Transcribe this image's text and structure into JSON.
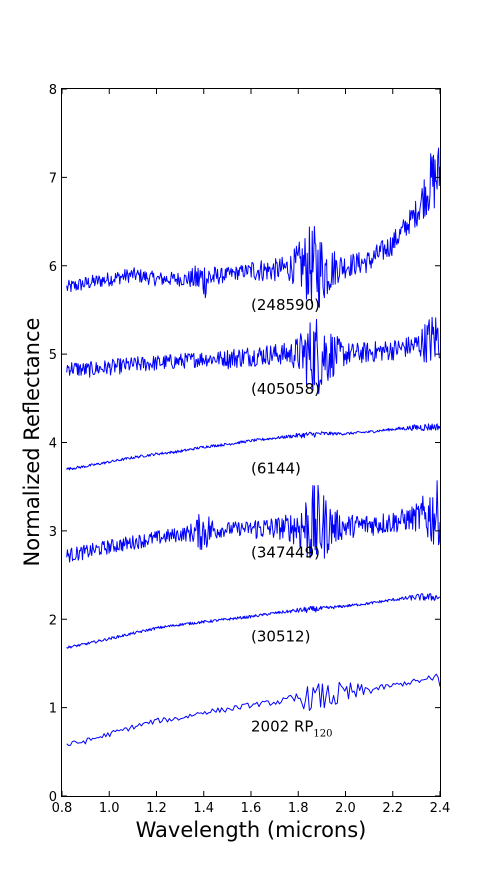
{
  "chart_data": {
    "type": "line",
    "title": "",
    "xlabel": "Wavelength (microns)",
    "ylabel": "Normalized Reflectance",
    "xlim": [
      0.8,
      2.4
    ],
    "ylim": [
      0,
      8
    ],
    "x_ticks": [
      "0.8",
      "1.0",
      "1.2",
      "1.4",
      "1.6",
      "1.8",
      "2.0",
      "2.2",
      "2.4"
    ],
    "y_ticks": [
      "0",
      "1",
      "2",
      "3",
      "4",
      "5",
      "6",
      "7",
      "8"
    ],
    "grid": false,
    "legend": "none",
    "line_color": "#0000ff",
    "series": [
      {
        "name": "(248590)",
        "label_pos": [
          1.6,
          5.5
        ],
        "noise_profile": "high_at_1.85_and_2.35",
        "points": [
          [
            0.82,
            5.75
          ],
          [
            0.9,
            5.8
          ],
          [
            1.0,
            5.85
          ],
          [
            1.1,
            5.9
          ],
          [
            1.2,
            5.85
          ],
          [
            1.3,
            5.85
          ],
          [
            1.4,
            5.85
          ],
          [
            1.5,
            5.9
          ],
          [
            1.6,
            5.95
          ],
          [
            1.7,
            5.95
          ],
          [
            1.8,
            6.0
          ],
          [
            1.85,
            6.0
          ],
          [
            1.9,
            5.95
          ],
          [
            2.0,
            6.0
          ],
          [
            2.1,
            6.05
          ],
          [
            2.2,
            6.25
          ],
          [
            2.3,
            6.6
          ],
          [
            2.35,
            6.9
          ],
          [
            2.4,
            7.05
          ]
        ]
      },
      {
        "name": "(405058)",
        "label_pos": [
          1.6,
          4.55
        ],
        "noise_profile": "high_at_1.85",
        "points": [
          [
            0.82,
            4.85
          ],
          [
            0.9,
            4.82
          ],
          [
            1.0,
            4.85
          ],
          [
            1.1,
            4.88
          ],
          [
            1.2,
            4.9
          ],
          [
            1.3,
            4.92
          ],
          [
            1.4,
            4.95
          ],
          [
            1.5,
            4.95
          ],
          [
            1.6,
            4.98
          ],
          [
            1.7,
            5.0
          ],
          [
            1.8,
            5.0
          ],
          [
            1.9,
            5.0
          ],
          [
            2.0,
            5.0
          ],
          [
            2.1,
            5.02
          ],
          [
            2.2,
            5.05
          ],
          [
            2.3,
            5.1
          ],
          [
            2.4,
            5.2
          ]
        ]
      },
      {
        "name": "(6144)",
        "label_pos": [
          1.6,
          3.65
        ],
        "noise_profile": "low",
        "points": [
          [
            0.82,
            3.7
          ],
          [
            0.9,
            3.73
          ],
          [
            1.0,
            3.78
          ],
          [
            1.1,
            3.83
          ],
          [
            1.2,
            3.87
          ],
          [
            1.3,
            3.9
          ],
          [
            1.4,
            3.95
          ],
          [
            1.5,
            3.98
          ],
          [
            1.6,
            4.02
          ],
          [
            1.7,
            4.05
          ],
          [
            1.8,
            4.08
          ],
          [
            1.9,
            4.1
          ],
          [
            2.0,
            4.1
          ],
          [
            2.1,
            4.12
          ],
          [
            2.2,
            4.15
          ],
          [
            2.3,
            4.17
          ],
          [
            2.4,
            4.18
          ]
        ]
      },
      {
        "name": "(347449)",
        "label_pos": [
          1.6,
          2.7
        ],
        "noise_profile": "high_at_1.85_and_2.35",
        "points": [
          [
            0.82,
            2.72
          ],
          [
            0.9,
            2.76
          ],
          [
            1.0,
            2.82
          ],
          [
            1.1,
            2.87
          ],
          [
            1.2,
            2.92
          ],
          [
            1.3,
            2.96
          ],
          [
            1.4,
            3.0
          ],
          [
            1.5,
            3.02
          ],
          [
            1.6,
            3.03
          ],
          [
            1.7,
            3.03
          ],
          [
            1.8,
            3.05
          ],
          [
            1.9,
            3.05
          ],
          [
            2.0,
            3.05
          ],
          [
            2.1,
            3.07
          ],
          [
            2.2,
            3.1
          ],
          [
            2.3,
            3.15
          ],
          [
            2.4,
            3.2
          ]
        ]
      },
      {
        "name": "(30512)",
        "label_pos": [
          1.6,
          1.75
        ],
        "noise_profile": "low",
        "points": [
          [
            0.82,
            1.68
          ],
          [
            0.9,
            1.72
          ],
          [
            1.0,
            1.78
          ],
          [
            1.1,
            1.84
          ],
          [
            1.2,
            1.9
          ],
          [
            1.3,
            1.94
          ],
          [
            1.4,
            1.97
          ],
          [
            1.5,
            2.0
          ],
          [
            1.6,
            2.03
          ],
          [
            1.7,
            2.07
          ],
          [
            1.8,
            2.1
          ],
          [
            1.9,
            2.12
          ],
          [
            2.0,
            2.15
          ],
          [
            2.1,
            2.18
          ],
          [
            2.2,
            2.22
          ],
          [
            2.3,
            2.25
          ],
          [
            2.4,
            2.25
          ]
        ]
      },
      {
        "name": "2002 RP",
        "name_sub": "120",
        "label_pos": [
          1.6,
          0.73
        ],
        "noise_profile": "medium_stepped",
        "points": [
          [
            0.82,
            0.58
          ],
          [
            0.9,
            0.62
          ],
          [
            1.0,
            0.7
          ],
          [
            1.1,
            0.78
          ],
          [
            1.2,
            0.85
          ],
          [
            1.3,
            0.88
          ],
          [
            1.4,
            0.95
          ],
          [
            1.5,
            0.98
          ],
          [
            1.6,
            1.03
          ],
          [
            1.7,
            1.06
          ],
          [
            1.8,
            1.1
          ],
          [
            1.9,
            1.12
          ],
          [
            2.0,
            1.15
          ],
          [
            2.1,
            1.2
          ],
          [
            2.2,
            1.25
          ],
          [
            2.3,
            1.3
          ],
          [
            2.4,
            1.32
          ]
        ]
      }
    ]
  }
}
